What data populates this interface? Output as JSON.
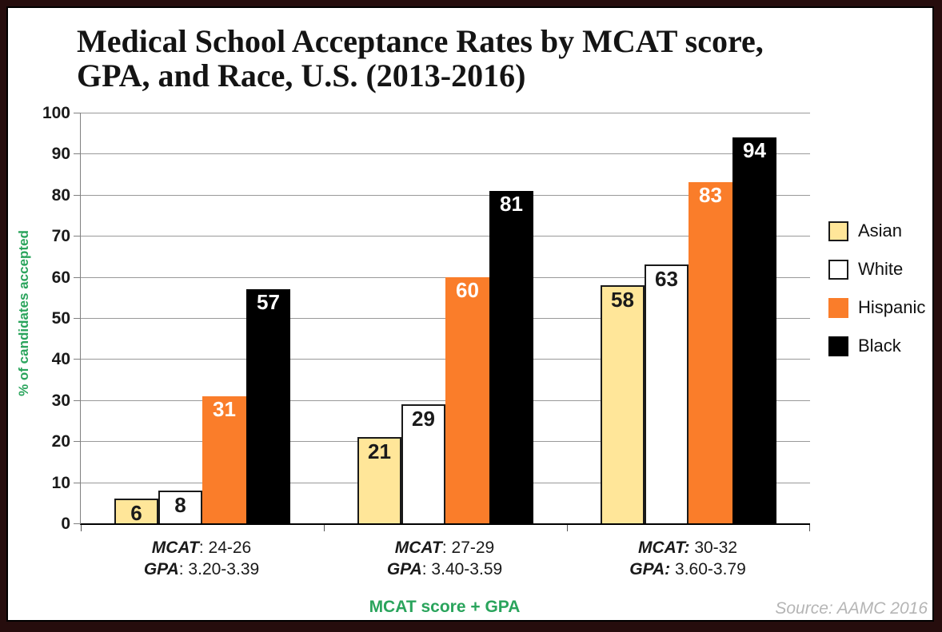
{
  "frame": {
    "background_color": "#260d0d",
    "panel_border_color": "#000000"
  },
  "chart_data": {
    "type": "bar",
    "title": "Medical School Acceptance Rates by MCAT score,\nGPA, and Race, U.S. (2013-2016)",
    "ylabel": "% of candidates accepted",
    "xlabel": "MCAT score + GPA",
    "source": "Source: AAMC 2016",
    "ylim": [
      0,
      100
    ],
    "ytick_step": 10,
    "yticks": [
      0,
      10,
      20,
      30,
      40,
      50,
      60,
      70,
      80,
      90,
      100
    ],
    "grid": true,
    "legend_position": "right",
    "axis_title_color": "#2aa45c",
    "groups": [
      {
        "mcat_bold": "MCAT",
        "mcat_rest": ": 24-26",
        "gpa_bold": "GPA",
        "gpa_rest": ": 3.20-3.39"
      },
      {
        "mcat_bold": "MCAT",
        "mcat_rest": ": 27-29",
        "gpa_bold": "GPA",
        "gpa_rest": ": 3.40-3.59"
      },
      {
        "mcat_bold": "MCAT:",
        "mcat_rest": " 30-32",
        "gpa_bold": "GPA:",
        "gpa_rest": " 3.60-3.79"
      }
    ],
    "series": [
      {
        "name": "Asian",
        "color": "#FFE699",
        "border_color": "#1a1a1a",
        "label_color": "#1a1a1a",
        "values": [
          6,
          21,
          58
        ]
      },
      {
        "name": "White",
        "color": "#FFFFFF",
        "border_color": "#1a1a1a",
        "label_color": "#1a1a1a",
        "values": [
          8,
          29,
          63
        ]
      },
      {
        "name": "Hispanic",
        "color": "#FA7D2A",
        "border_color": "none",
        "label_color": "#FFFFFF",
        "values": [
          31,
          60,
          83
        ]
      },
      {
        "name": "Black",
        "color": "#000000",
        "border_color": "none",
        "label_color": "#FFFFFF",
        "values": [
          57,
          81,
          94
        ]
      }
    ]
  }
}
